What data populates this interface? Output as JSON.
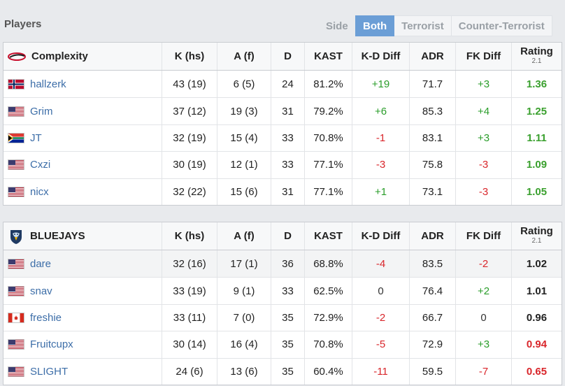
{
  "header": {
    "title": "Players",
    "side_label": "Side",
    "tabs": [
      "Both",
      "Terrorist",
      "Counter-Terrorist"
    ],
    "active_tab": "Both"
  },
  "columns": {
    "khs": "K (hs)",
    "af": "A (f)",
    "d": "D",
    "kast": "KAST",
    "kd_diff": "K-D Diff",
    "adr": "ADR",
    "fk_diff": "FK Diff",
    "rating": "Rating",
    "rating_version": "2.1"
  },
  "teams": [
    {
      "name": "Complexity",
      "logo_icon": "complexity-logo-icon",
      "players": [
        {
          "name": "hallzerk",
          "flag": "norway-flag-icon",
          "khs": "43 (19)",
          "af": "6 (5)",
          "d": "24",
          "kast": "81.2%",
          "kd_diff": "+19",
          "kd_sign": "pos",
          "adr": "71.7",
          "fk_diff": "+3",
          "fk_sign": "pos",
          "rating": "1.36",
          "rating_class": "good"
        },
        {
          "name": "Grim",
          "flag": "usa-flag-icon",
          "khs": "37 (12)",
          "af": "19 (3)",
          "d": "31",
          "kast": "79.2%",
          "kd_diff": "+6",
          "kd_sign": "pos",
          "adr": "85.3",
          "fk_diff": "+4",
          "fk_sign": "pos",
          "rating": "1.25",
          "rating_class": "good"
        },
        {
          "name": "JT",
          "flag": "south-africa-flag-icon",
          "khs": "32 (19)",
          "af": "15 (4)",
          "d": "33",
          "kast": "70.8%",
          "kd_diff": "-1",
          "kd_sign": "neg",
          "adr": "83.1",
          "fk_diff": "+3",
          "fk_sign": "pos",
          "rating": "1.11",
          "rating_class": "good"
        },
        {
          "name": "Cxzi",
          "flag": "usa-flag-icon",
          "khs": "30 (19)",
          "af": "12 (1)",
          "d": "33",
          "kast": "77.1%",
          "kd_diff": "-3",
          "kd_sign": "neg",
          "adr": "75.8",
          "fk_diff": "-3",
          "fk_sign": "neg",
          "rating": "1.09",
          "rating_class": "good"
        },
        {
          "name": "nicx",
          "flag": "usa-flag-icon",
          "khs": "32 (22)",
          "af": "15 (6)",
          "d": "31",
          "kast": "77.1%",
          "kd_diff": "+1",
          "kd_sign": "pos",
          "adr": "73.1",
          "fk_diff": "-3",
          "fk_sign": "neg",
          "rating": "1.05",
          "rating_class": "good"
        }
      ]
    },
    {
      "name": "BLUEJAYS",
      "logo_icon": "bluejays-logo-icon",
      "players": [
        {
          "name": "dare",
          "flag": "usa-flag-icon",
          "khs": "32 (16)",
          "af": "17 (1)",
          "d": "36",
          "kast": "68.8%",
          "kd_diff": "-4",
          "kd_sign": "neg",
          "adr": "83.5",
          "fk_diff": "-2",
          "fk_sign": "neg",
          "rating": "1.02",
          "rating_class": "neutral"
        },
        {
          "name": "snav",
          "flag": "usa-flag-icon",
          "khs": "33 (19)",
          "af": "9 (1)",
          "d": "33",
          "kast": "62.5%",
          "kd_diff": "0",
          "kd_sign": "neu",
          "adr": "76.4",
          "fk_diff": "+2",
          "fk_sign": "pos",
          "rating": "1.01",
          "rating_class": "neutral"
        },
        {
          "name": "freshie",
          "flag": "canada-flag-icon",
          "khs": "33 (11)",
          "af": "7 (0)",
          "d": "35",
          "kast": "72.9%",
          "kd_diff": "-2",
          "kd_sign": "neg",
          "adr": "66.7",
          "fk_diff": "0",
          "fk_sign": "neu",
          "rating": "0.96",
          "rating_class": "neutral"
        },
        {
          "name": "Fruitcupx",
          "flag": "usa-flag-icon",
          "khs": "30 (14)",
          "af": "16 (4)",
          "d": "35",
          "kast": "70.8%",
          "kd_diff": "-5",
          "kd_sign": "neg",
          "adr": "72.9",
          "fk_diff": "+3",
          "fk_sign": "pos",
          "rating": "0.94",
          "rating_class": "bad"
        },
        {
          "name": "SLIGHT",
          "flag": "usa-flag-icon",
          "khs": "24 (6)",
          "af": "13 (6)",
          "d": "35",
          "kast": "60.4%",
          "kd_diff": "-11",
          "kd_sign": "neg",
          "adr": "59.5",
          "fk_diff": "-7",
          "fk_sign": "neg",
          "rating": "0.65",
          "rating_class": "bad"
        }
      ]
    }
  ],
  "colors": {
    "positive": "#2a9d2a",
    "negative": "#d9262b",
    "active_tab": "#6b9ed6",
    "link": "#3d6ea8"
  }
}
